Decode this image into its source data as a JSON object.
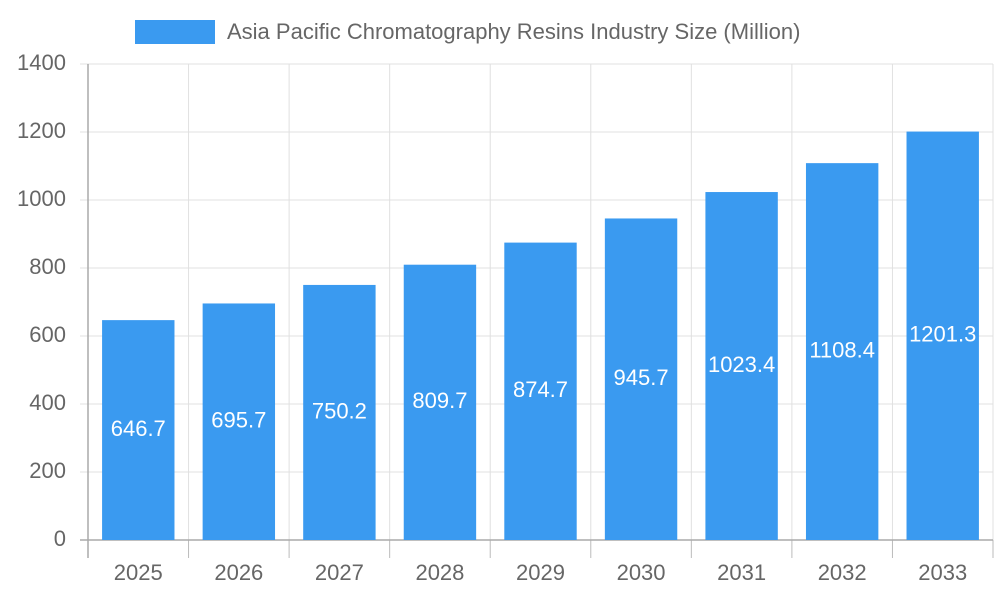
{
  "chart_data": {
    "type": "bar",
    "legend_label": "Asia Pacific Chromatography Resins Industry Size (Million)",
    "categories": [
      "2025",
      "2026",
      "2027",
      "2028",
      "2029",
      "2030",
      "2031",
      "2032",
      "2033"
    ],
    "values": [
      646.7,
      695.7,
      750.2,
      809.7,
      874.7,
      945.7,
      1023.4,
      1108.4,
      1201.3
    ],
    "color": "#3a9af0",
    "ylim": [
      0,
      1400
    ],
    "yticks": [
      0,
      200,
      400,
      600,
      800,
      1000,
      1200,
      1400
    ],
    "grid": true
  }
}
